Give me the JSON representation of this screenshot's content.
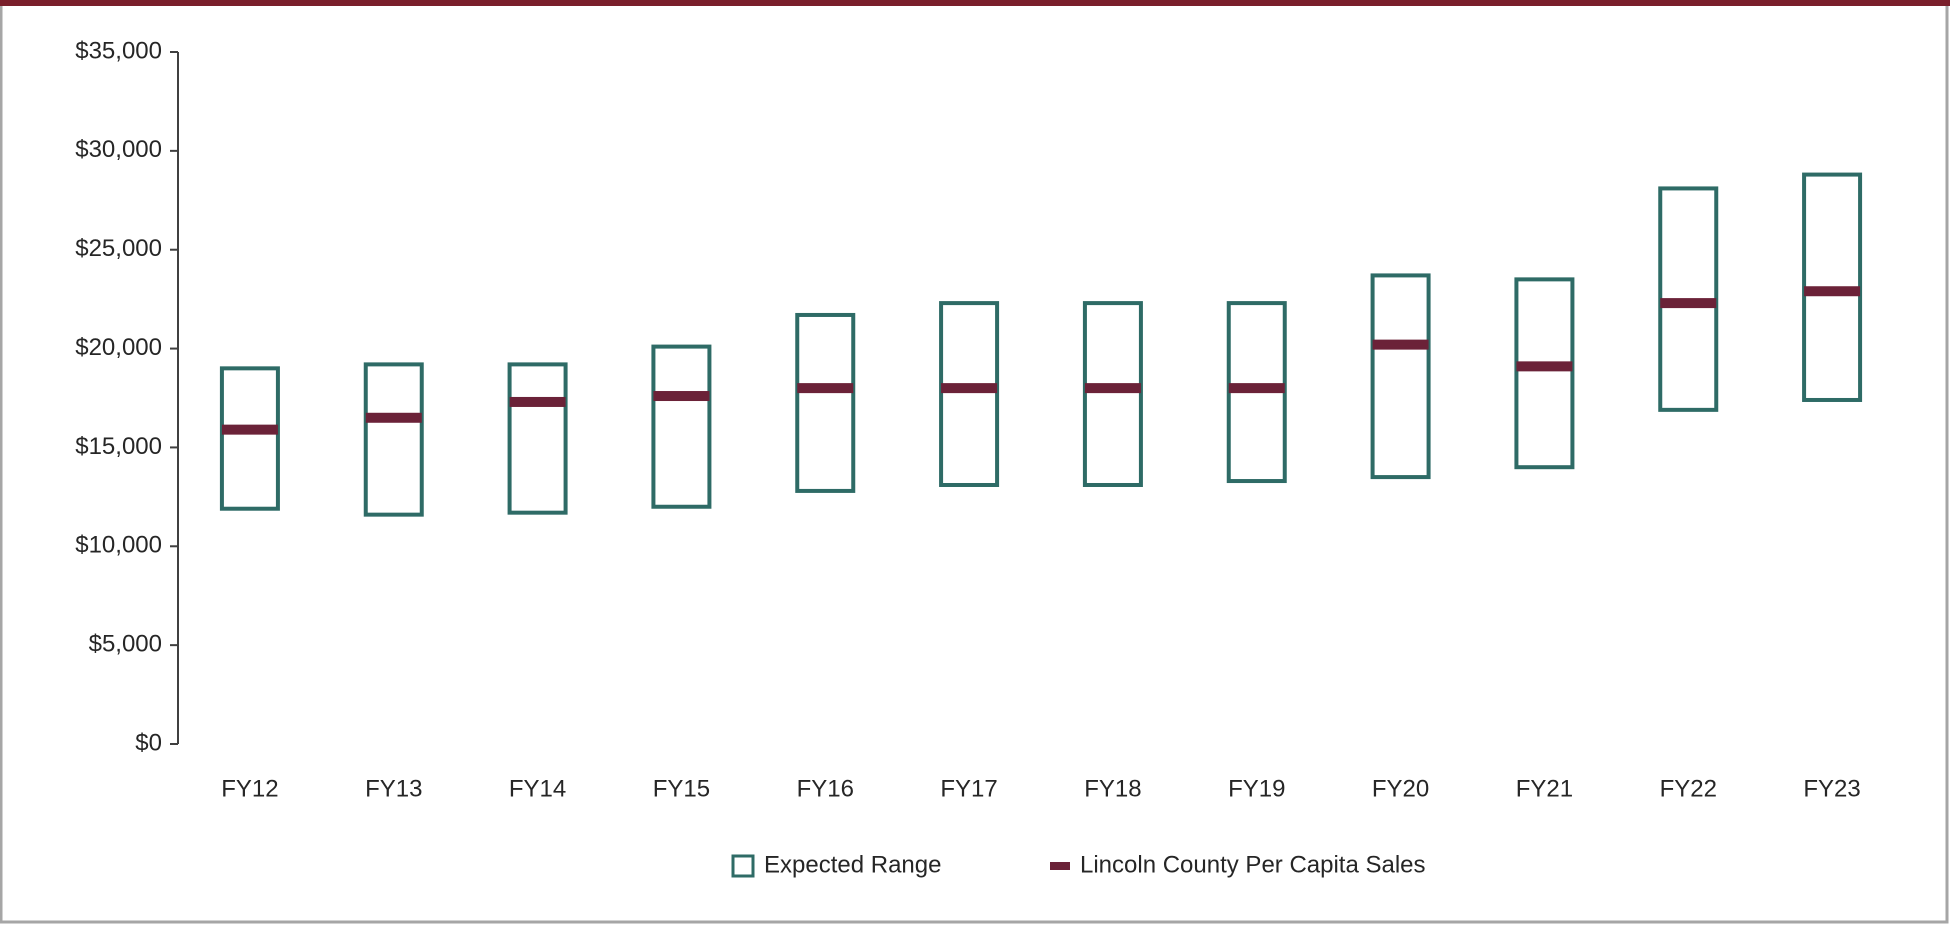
{
  "chart_data": {
    "type": "range",
    "categories": [
      "FY12",
      "FY13",
      "FY14",
      "FY15",
      "FY16",
      "FY17",
      "FY18",
      "FY19",
      "FY20",
      "FY21",
      "FY22",
      "FY23"
    ],
    "series": [
      {
        "name": "Expected Range",
        "color": "#2e6b66",
        "low": [
          11900,
          11600,
          11700,
          12000,
          12800,
          13100,
          13100,
          13300,
          13500,
          14000,
          16900,
          17400
        ],
        "high": [
          19000,
          19200,
          19200,
          20100,
          21700,
          22300,
          22300,
          22300,
          23700,
          23500,
          28100,
          28800
        ]
      },
      {
        "name": "Lincoln County Per Capita Sales",
        "color": "#6b2238",
        "values": [
          15900,
          16500,
          17300,
          17600,
          18000,
          18000,
          18000,
          18000,
          20200,
          19100,
          22300,
          22900
        ]
      }
    ],
    "ylim": [
      0,
      35000
    ],
    "yticks": [
      {
        "value": 0,
        "label": "$0"
      },
      {
        "value": 5000,
        "label": "$5,000"
      },
      {
        "value": 10000,
        "label": "$10,000"
      },
      {
        "value": 15000,
        "label": "$15,000"
      },
      {
        "value": 20000,
        "label": "$20,000"
      },
      {
        "value": 25000,
        "label": "$25,000"
      },
      {
        "value": 30000,
        "label": "$30,000"
      },
      {
        "value": 35000,
        "label": "$35,000"
      }
    ],
    "grid": false
  }
}
